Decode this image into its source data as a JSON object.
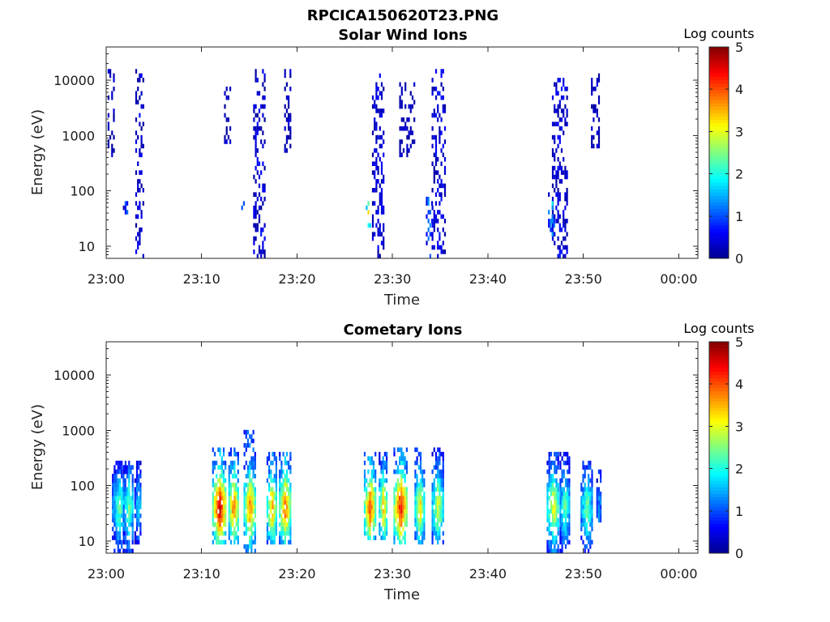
{
  "figure": {
    "title": "RPCICA150620T23.PNG"
  },
  "colormap": [
    "#00008f",
    "#0000ff",
    "#0080ff",
    "#00ffff",
    "#80ff80",
    "#ffff00",
    "#ff8000",
    "#ff0000",
    "#800000"
  ],
  "chart_data": [
    {
      "type": "heatmap",
      "title": "Solar Wind Ions",
      "xlabel": "Time",
      "ylabel": "Energy (eV)",
      "x_ticks": [
        "23:00",
        "23:10",
        "23:20",
        "23:30",
        "23:40",
        "23:50",
        "00:00"
      ],
      "y_ticks": [
        "10",
        "100",
        "1000",
        "10000"
      ],
      "y_scale": "log",
      "ylim": [
        6,
        40000
      ],
      "xlim_minutes": [
        0,
        62
      ],
      "colorbar": {
        "label": "Log counts",
        "ticks": [
          "0",
          "1",
          "2",
          "3",
          "4",
          "5"
        ],
        "range": [
          0,
          5
        ]
      },
      "grid": false,
      "bursts": [
        {
          "center": 3.5,
          "width": 0.9,
          "emin": 6,
          "emax": 15000,
          "level": 0.4
        },
        {
          "center": 2.0,
          "width": 0.5,
          "emin": 30,
          "emax": 80,
          "level": 1.3
        },
        {
          "center": 0.5,
          "width": 0.7,
          "emin": 400,
          "emax": 15000,
          "level": 0.2
        },
        {
          "center": 12.7,
          "width": 0.7,
          "emin": 600,
          "emax": 10000,
          "level": 0.2
        },
        {
          "center": 16.0,
          "width": 1.2,
          "emin": 6,
          "emax": 15000,
          "level": 0.5
        },
        {
          "center": 14.3,
          "width": 0.3,
          "emin": 30,
          "emax": 70,
          "level": 2.4
        },
        {
          "center": 19.0,
          "width": 0.7,
          "emin": 500,
          "emax": 15000,
          "level": 0.2
        },
        {
          "center": 28.5,
          "width": 1.3,
          "emin": 6,
          "emax": 15000,
          "level": 0.5
        },
        {
          "center": 27.4,
          "width": 0.4,
          "emin": 20,
          "emax": 80,
          "level": 2.8
        },
        {
          "center": 31.5,
          "width": 1.6,
          "emin": 400,
          "emax": 10000,
          "level": 0.2
        },
        {
          "center": 34.8,
          "width": 1.4,
          "emin": 6,
          "emax": 15000,
          "level": 0.5
        },
        {
          "center": 33.8,
          "width": 0.6,
          "emin": 6,
          "emax": 80,
          "level": 1.2
        },
        {
          "center": 47.5,
          "width": 1.6,
          "emin": 6,
          "emax": 12000,
          "level": 0.5
        },
        {
          "center": 46.6,
          "width": 0.6,
          "emin": 15,
          "emax": 100,
          "level": 1.6
        },
        {
          "center": 51.2,
          "width": 0.8,
          "emin": 600,
          "emax": 15000,
          "level": 0.2
        }
      ]
    },
    {
      "type": "heatmap",
      "title": "Cometary Ions",
      "xlabel": "Time",
      "ylabel": "Energy (eV)",
      "x_ticks": [
        "23:00",
        "23:10",
        "23:20",
        "23:30",
        "23:40",
        "23:50",
        "00:00"
      ],
      "y_ticks": [
        "10",
        "100",
        "1000",
        "10000"
      ],
      "y_scale": "log",
      "ylim": [
        6,
        40000
      ],
      "xlim_minutes": [
        0,
        62
      ],
      "colorbar": {
        "label": "Log counts",
        "ticks": [
          "0",
          "1",
          "2",
          "3",
          "4",
          "5"
        ],
        "range": [
          0,
          5
        ]
      },
      "grid": false,
      "bursts": [
        {
          "center": 1.3,
          "width": 1.4,
          "emin": 6,
          "emax": 300,
          "level": 1.9
        },
        {
          "center": 2.3,
          "width": 1.1,
          "emin": 6,
          "emax": 300,
          "level": 2.0
        },
        {
          "center": 3.3,
          "width": 0.7,
          "emin": 8,
          "emax": 300,
          "level": 1.5
        },
        {
          "center": 11.8,
          "width": 1.4,
          "emin": 8,
          "emax": 500,
          "level": 3.9
        },
        {
          "center": 13.3,
          "width": 1.0,
          "emin": 8,
          "emax": 500,
          "level": 3.3
        },
        {
          "center": 15.0,
          "width": 1.2,
          "emin": 6,
          "emax": 1000,
          "level": 3.2
        },
        {
          "center": 17.3,
          "width": 1.0,
          "emin": 8,
          "emax": 400,
          "level": 3.0
        },
        {
          "center": 18.7,
          "width": 1.2,
          "emin": 8,
          "emax": 400,
          "level": 3.3
        },
        {
          "center": 27.6,
          "width": 1.2,
          "emin": 10,
          "emax": 400,
          "level": 3.4
        },
        {
          "center": 29.0,
          "width": 0.9,
          "emin": 10,
          "emax": 400,
          "level": 2.9
        },
        {
          "center": 30.8,
          "width": 1.4,
          "emin": 8,
          "emax": 500,
          "level": 3.7
        },
        {
          "center": 32.8,
          "width": 1.0,
          "emin": 8,
          "emax": 500,
          "level": 2.8
        },
        {
          "center": 34.7,
          "width": 1.2,
          "emin": 8,
          "emax": 500,
          "level": 2.5
        },
        {
          "center": 46.8,
          "width": 1.3,
          "emin": 6,
          "emax": 400,
          "level": 2.6
        },
        {
          "center": 48.0,
          "width": 1.0,
          "emin": 6,
          "emax": 400,
          "level": 2.0
        },
        {
          "center": 50.3,
          "width": 1.2,
          "emin": 6,
          "emax": 300,
          "level": 2.0
        },
        {
          "center": 51.6,
          "width": 0.5,
          "emin": 20,
          "emax": 200,
          "level": 1.2
        }
      ]
    }
  ]
}
